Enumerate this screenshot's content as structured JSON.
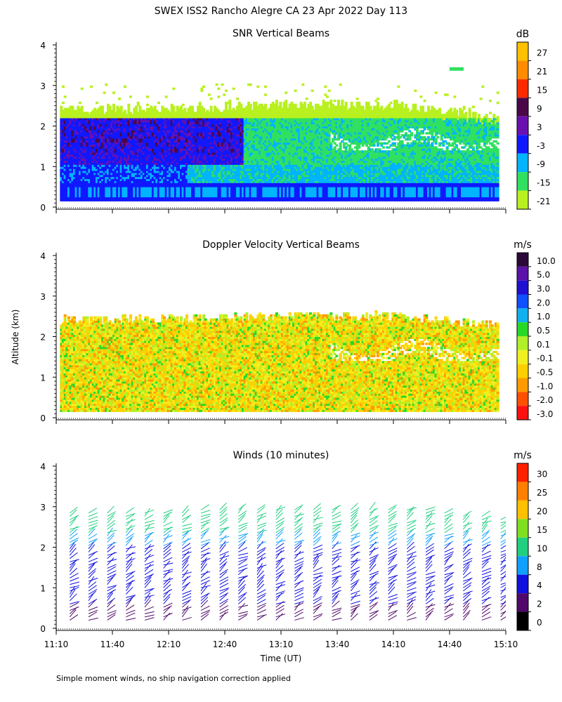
{
  "figure": {
    "title": "SWEX ISS2 Rancho Alegre CA  23 Apr 2022 Day 113",
    "ylabel": "Altitude (km)",
    "xlabel": "Time (UT)",
    "footnote": "Simple moment winds, no ship navigation correction applied"
  },
  "chart_data": [
    {
      "type": "heatmap",
      "title": "SNR Vertical Beams",
      "unit": "dB",
      "x_ticks": [
        "11:10",
        "11:40",
        "12:10",
        "12:40",
        "13:10",
        "13:40",
        "14:10",
        "14:40",
        "15:10"
      ],
      "x_range_minutes": [
        670,
        910
      ],
      "ylim": [
        0,
        4
      ],
      "y_ticks": [
        0,
        1,
        2,
        3,
        4
      ],
      "colorbar": {
        "labels": [
          "27",
          "21",
          "15",
          "9",
          "3",
          "-3",
          "-9",
          "-15",
          "-21"
        ],
        "colors": [
          "#ffc000",
          "#ff8c00",
          "#ff2a00",
          "#4a0848",
          "#6a10b0",
          "#1018ff",
          "#00b4ff",
          "#30e060",
          "#b8f020"
        ]
      },
      "echo_top_km_by_hour": {
        "11:10": 2.4,
        "12:10": 2.4,
        "13:10": 2.5,
        "14:10": 2.5,
        "15:10": 2.2
      },
      "isolated_echo": {
        "time": "14:40",
        "altitude_km": 3.4
      }
    },
    {
      "type": "heatmap",
      "title": "Doppler Velocity Vertical Beams",
      "unit": "m/s",
      "x_ticks": [
        "11:10",
        "11:40",
        "12:10",
        "12:40",
        "13:10",
        "13:40",
        "14:10",
        "14:40",
        "15:10"
      ],
      "ylim": [
        0,
        4
      ],
      "y_ticks": [
        0,
        1,
        2,
        3,
        4
      ],
      "colorbar": {
        "labels": [
          "10.0",
          "5.0",
          "3.0",
          "2.0",
          "1.0",
          "0.5",
          "0.1",
          "-0.1",
          "-0.5",
          "-1.0",
          "-2.0",
          "-3.0"
        ],
        "colors": [
          "#2a0838",
          "#5a12a8",
          "#2010d0",
          "#1050ff",
          "#10b0f0",
          "#28d828",
          "#b0f028",
          "#f0f020",
          "#ffd000",
          "#ff9a00",
          "#ff5000",
          "#ff1010"
        ]
      }
    },
    {
      "type": "wind-barbs",
      "title": "Winds (10 minutes)",
      "unit": "m/s",
      "x_ticks": [
        "11:10",
        "11:40",
        "12:10",
        "12:40",
        "13:10",
        "13:40",
        "14:10",
        "14:40",
        "15:10"
      ],
      "ylim": [
        0,
        4
      ],
      "y_ticks": [
        0,
        1,
        2,
        3,
        4
      ],
      "interval_minutes": 10,
      "colorbar": {
        "labels": [
          "30",
          "25",
          "20",
          "15",
          "10",
          "8",
          "4",
          "2",
          "0"
        ],
        "colors": [
          "#ff2000",
          "#ff8000",
          "#ffc000",
          "#80e020",
          "#20d080",
          "#10a0ff",
          "#1010e0",
          "#50086a",
          "#000000"
        ]
      }
    }
  ]
}
